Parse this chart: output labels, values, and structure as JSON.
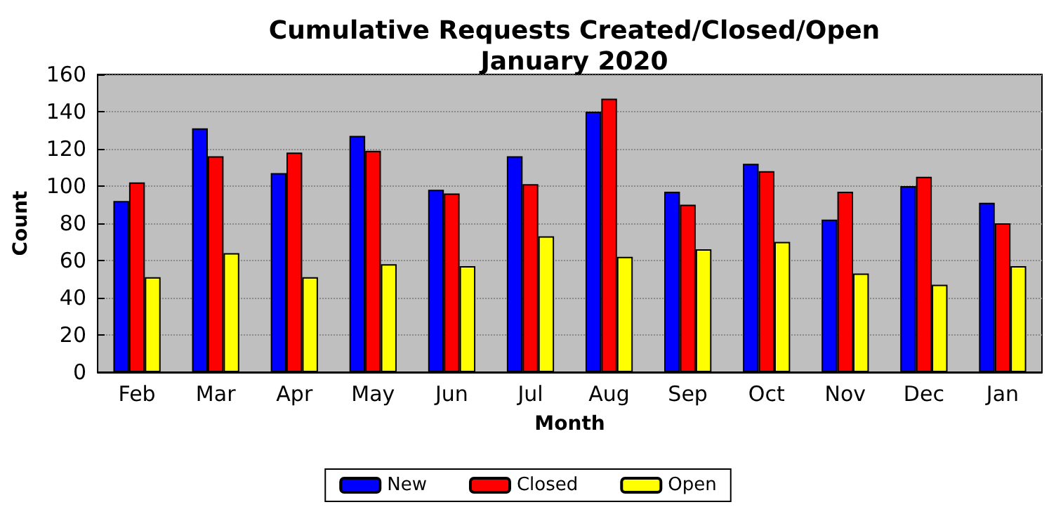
{
  "chart_data": {
    "type": "bar",
    "title": "Cumulative Requests Created/Closed/Open\nJanuary 2020",
    "xlabel": "Month",
    "ylabel": "Count",
    "categories": [
      "Feb",
      "Mar",
      "Apr",
      "May",
      "Jun",
      "Jul",
      "Aug",
      "Sep",
      "Oct",
      "Nov",
      "Dec",
      "Jan"
    ],
    "series": [
      {
        "name": "New",
        "color": "#0000ff",
        "values": [
          92,
          131,
          107,
          127,
          98,
          116,
          140,
          97,
          112,
          82,
          100,
          91
        ]
      },
      {
        "name": "Closed",
        "color": "#ff0000",
        "values": [
          102,
          116,
          118,
          119,
          96,
          101,
          147,
          90,
          108,
          97,
          105,
          80
        ]
      },
      {
        "name": "Open",
        "color": "#ffff00",
        "values": [
          51,
          64,
          51,
          58,
          57,
          73,
          62,
          66,
          70,
          53,
          47,
          57
        ]
      }
    ],
    "ylim": [
      0,
      160
    ],
    "yticks": [
      0,
      20,
      40,
      60,
      80,
      100,
      120,
      140,
      160
    ],
    "grid": "y",
    "legend": "bottom"
  }
}
